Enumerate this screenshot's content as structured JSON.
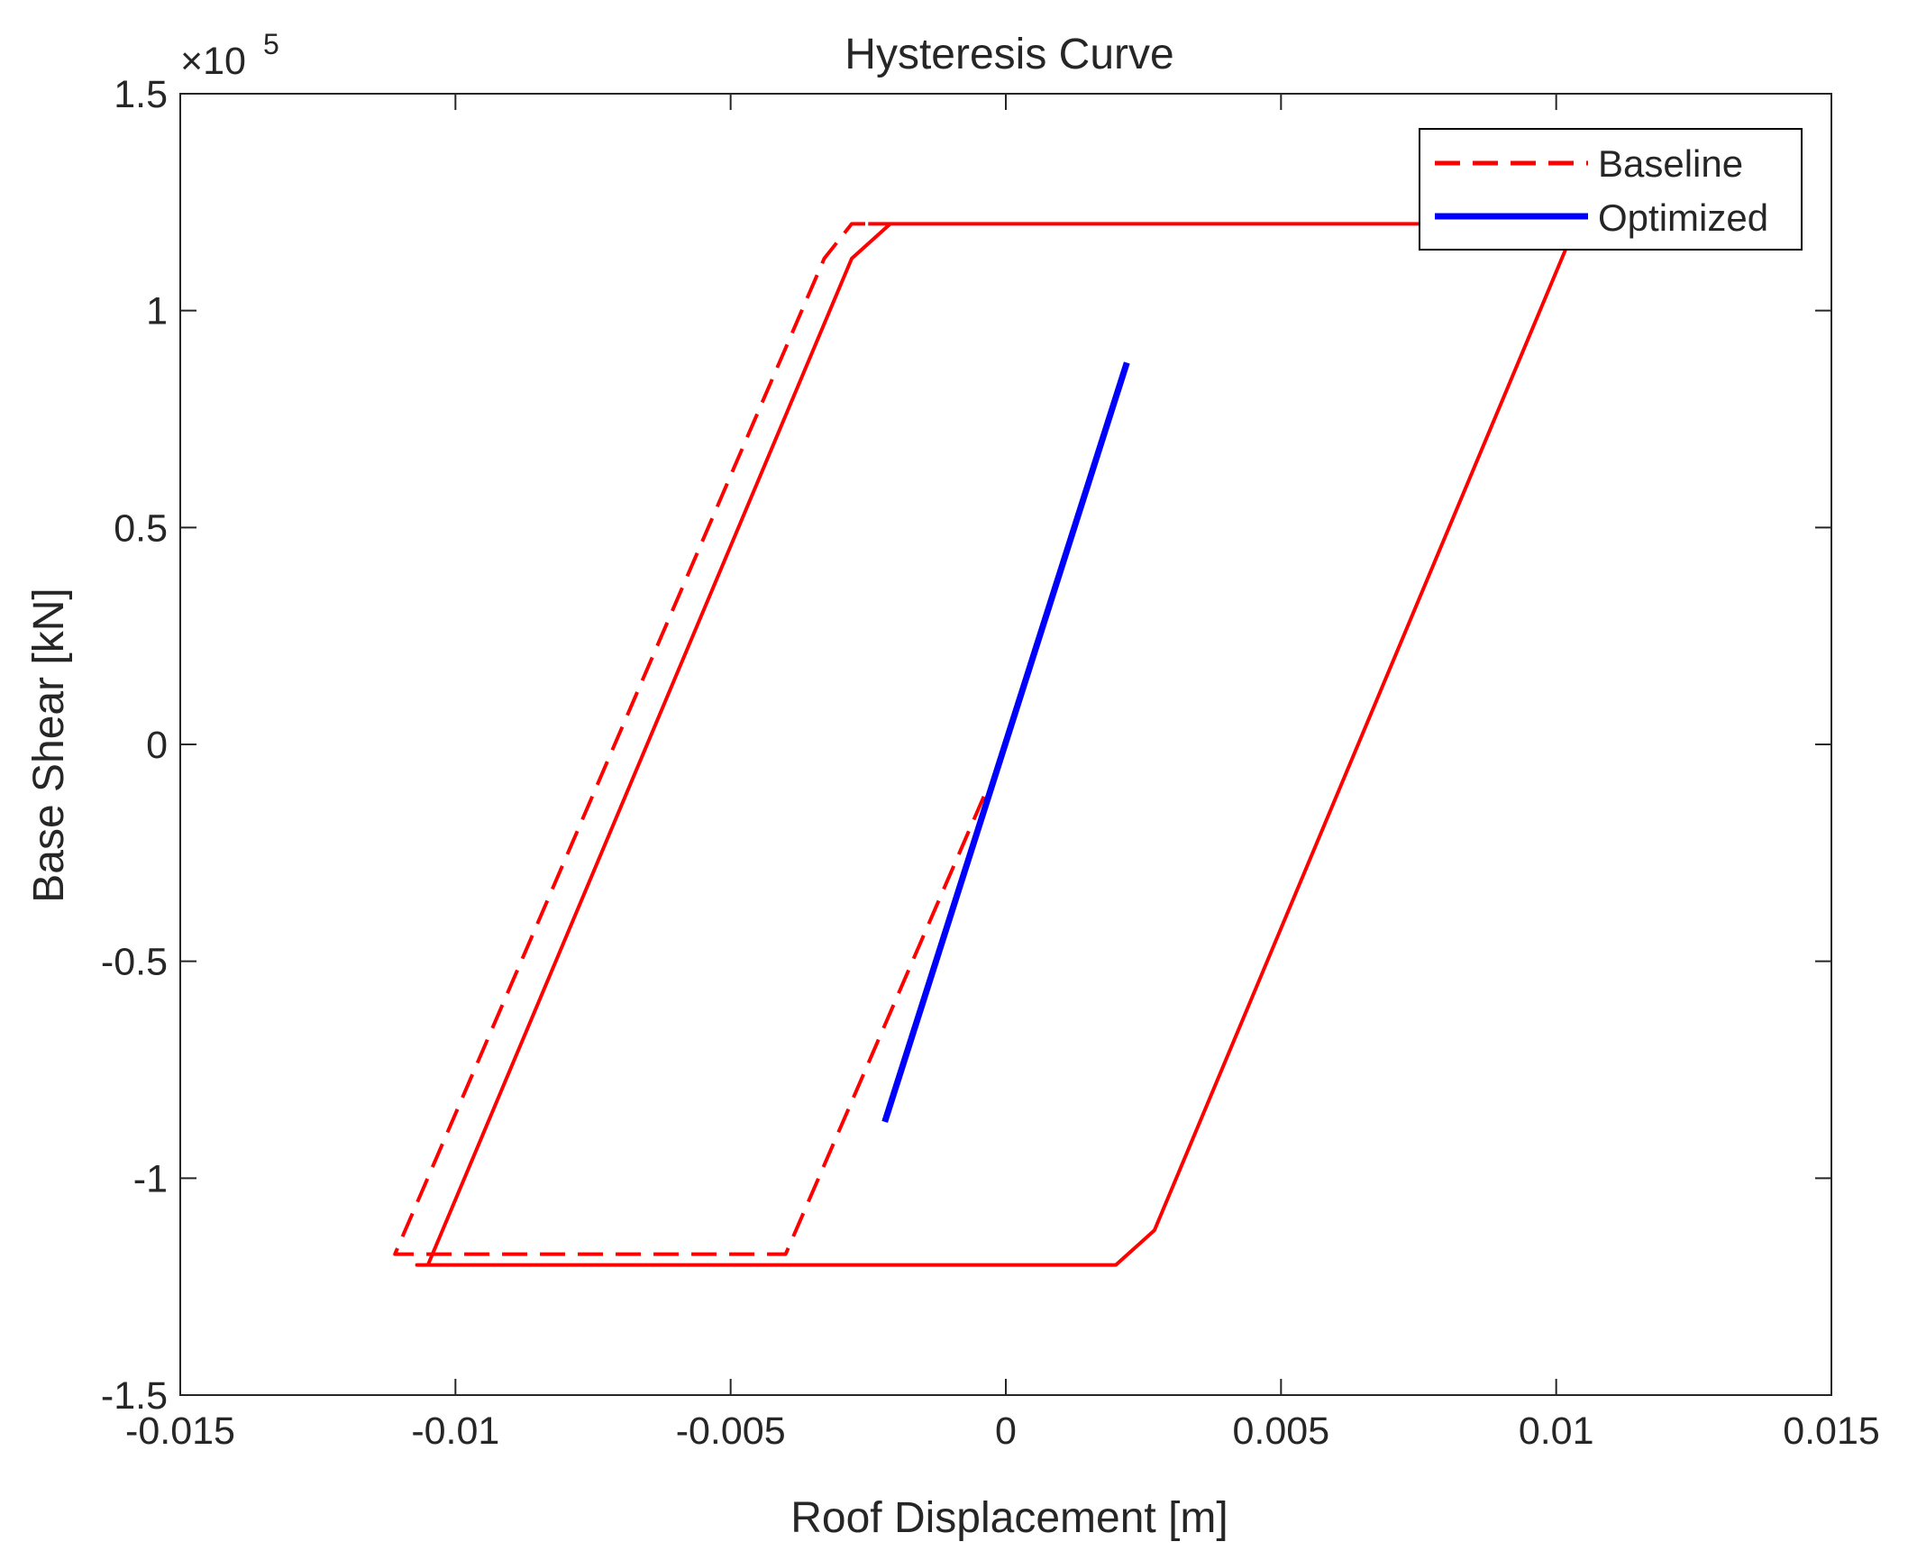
{
  "chart_data": {
    "type": "line",
    "title": "Hysteresis Curve",
    "xlabel": "Roof Displacement [m]",
    "ylabel": "Base Shear [kN]",
    "xlim": [
      -0.015,
      0.015
    ],
    "ylim": [
      -1.5,
      1.5
    ],
    "y_exponent_label": "×10",
    "y_exponent_power": "5",
    "xticks": [
      -0.015,
      -0.01,
      -0.005,
      0,
      0.005,
      0.01,
      0.015
    ],
    "xtick_labels": [
      "-0.015",
      "-0.01",
      "-0.005",
      "0",
      "0.005",
      "0.01",
      "0.015"
    ],
    "yticks": [
      -1.5,
      -1,
      -0.5,
      0,
      0.5,
      1,
      1.5
    ],
    "ytick_labels": [
      "-1.5",
      "-1",
      "-0.5",
      "0",
      "0.5",
      "1",
      "1.5"
    ],
    "grid": false,
    "legend_position": "top-right",
    "series": [
      {
        "name": "Baseline",
        "color": "#ff0000",
        "style": "dashed",
        "x": [
          -0.0004,
          -0.004,
          -0.004,
          -0.011,
          -0.0111,
          -0.0033,
          -0.0028,
          -0.0025
        ],
        "y": [
          -0.12,
          -1.175,
          -1.175,
          -1.175,
          -1.175,
          1.12,
          1.2,
          1.2
        ]
      },
      {
        "name": "",
        "color": "#ff0000",
        "style": "solid",
        "x": [
          -0.0025,
          -0.0021,
          0.0101,
          0.0102,
          0.0102,
          0.0027,
          0.002,
          -0.0107,
          -0.0107,
          -0.0105,
          -0.0028,
          -0.0021
        ],
        "y": [
          1.2,
          1.2,
          1.2,
          1.2,
          1.15,
          -1.12,
          -1.2,
          -1.2,
          -1.2,
          -1.2,
          1.12,
          1.2
        ]
      },
      {
        "name": "Optimized",
        "color": "#0000ff",
        "style": "solid",
        "x": [
          -0.0022,
          0.0022
        ],
        "y": [
          -0.87,
          0.88
        ]
      }
    ]
  }
}
